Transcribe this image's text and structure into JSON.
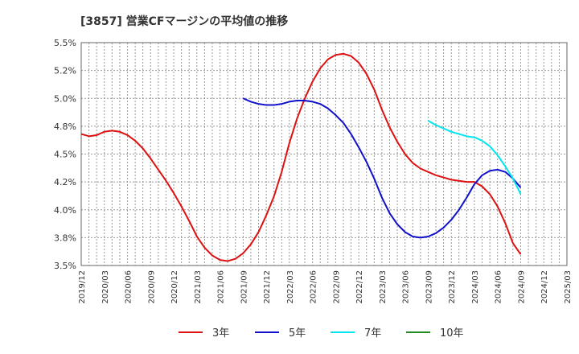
{
  "chart_data": {
    "type": "line",
    "title": "[3857]  営業CFマージンの平均値の推移",
    "ylim": [
      3.5,
      5.5
    ],
    "yticks": [
      "5.5%",
      "5.2%",
      "5.0%",
      "4.8%",
      "4.5%",
      "4.2%",
      "4.0%",
      "3.8%",
      "3.5%"
    ],
    "xticks": [
      "2019/12",
      "2020/03",
      "2020/06",
      "2020/09",
      "2020/12",
      "2021/03",
      "2021/06",
      "2021/09",
      "2021/12",
      "2022/03",
      "2022/06",
      "2022/09",
      "2022/12",
      "2023/03",
      "2023/06",
      "2023/09",
      "2023/12",
      "2024/03",
      "2024/06",
      "2024/09",
      "2024/12",
      "2025/03"
    ],
    "grid": true,
    "legend_position": "bottom",
    "series": [
      {
        "name": "3年",
        "color": "#dd1111",
        "points": [
          [
            0,
            4.68
          ],
          [
            1,
            4.66
          ],
          [
            2,
            4.67
          ],
          [
            3,
            4.7
          ],
          [
            4,
            4.71
          ],
          [
            5,
            4.7
          ],
          [
            6,
            4.67
          ],
          [
            7,
            4.62
          ],
          [
            8,
            4.55
          ],
          [
            9,
            4.46
          ],
          [
            10,
            4.36
          ],
          [
            11,
            4.26
          ],
          [
            12,
            4.15
          ],
          [
            13,
            4.03
          ],
          [
            14,
            3.9
          ],
          [
            15,
            3.76
          ],
          [
            16,
            3.66
          ],
          [
            17,
            3.59
          ],
          [
            18,
            3.55
          ],
          [
            19,
            3.54
          ],
          [
            20,
            3.56
          ],
          [
            21,
            3.61
          ],
          [
            22,
            3.69
          ],
          [
            23,
            3.8
          ],
          [
            24,
            3.95
          ],
          [
            25,
            4.12
          ],
          [
            26,
            4.34
          ],
          [
            27,
            4.6
          ],
          [
            28,
            4.82
          ],
          [
            29,
            5.0
          ],
          [
            30,
            5.15
          ],
          [
            31,
            5.27
          ],
          [
            32,
            5.35
          ],
          [
            33,
            5.39
          ],
          [
            34,
            5.4
          ],
          [
            35,
            5.38
          ],
          [
            36,
            5.32
          ],
          [
            37,
            5.22
          ],
          [
            38,
            5.08
          ],
          [
            39,
            4.9
          ],
          [
            40,
            4.74
          ],
          [
            41,
            4.61
          ],
          [
            42,
            4.5
          ],
          [
            43,
            4.42
          ],
          [
            44,
            4.37
          ],
          [
            45,
            4.34
          ],
          [
            46,
            4.31
          ],
          [
            47,
            4.29
          ],
          [
            48,
            4.27
          ],
          [
            49,
            4.26
          ],
          [
            50,
            4.25
          ],
          [
            51,
            4.25
          ],
          [
            52,
            4.21
          ],
          [
            53,
            4.14
          ],
          [
            54,
            4.03
          ],
          [
            55,
            3.88
          ],
          [
            56,
            3.7
          ],
          [
            57,
            3.6
          ]
        ]
      },
      {
        "name": "5年",
        "color": "#1111cc",
        "points": [
          [
            21,
            5.0
          ],
          [
            22,
            4.97
          ],
          [
            23,
            4.95
          ],
          [
            24,
            4.94
          ],
          [
            25,
            4.94
          ],
          [
            26,
            4.95
          ],
          [
            27,
            4.97
          ],
          [
            28,
            4.98
          ],
          [
            29,
            4.98
          ],
          [
            30,
            4.97
          ],
          [
            31,
            4.95
          ],
          [
            32,
            4.91
          ],
          [
            33,
            4.85
          ],
          [
            34,
            4.78
          ],
          [
            35,
            4.68
          ],
          [
            36,
            4.56
          ],
          [
            37,
            4.43
          ],
          [
            38,
            4.28
          ],
          [
            39,
            4.11
          ],
          [
            40,
            3.97
          ],
          [
            41,
            3.87
          ],
          [
            42,
            3.8
          ],
          [
            43,
            3.76
          ],
          [
            44,
            3.75
          ],
          [
            45,
            3.76
          ],
          [
            46,
            3.79
          ],
          [
            47,
            3.84
          ],
          [
            48,
            3.91
          ],
          [
            49,
            4.0
          ],
          [
            50,
            4.11
          ],
          [
            51,
            4.23
          ],
          [
            52,
            4.31
          ],
          [
            53,
            4.35
          ],
          [
            54,
            4.36
          ],
          [
            55,
            4.34
          ],
          [
            56,
            4.28
          ],
          [
            57,
            4.2
          ]
        ]
      },
      {
        "name": "7年",
        "color": "#00e5ee",
        "points": [
          [
            45,
            4.8
          ],
          [
            46,
            4.76
          ],
          [
            47,
            4.73
          ],
          [
            48,
            4.7
          ],
          [
            49,
            4.68
          ],
          [
            50,
            4.66
          ],
          [
            51,
            4.65
          ],
          [
            52,
            4.62
          ],
          [
            53,
            4.57
          ],
          [
            54,
            4.49
          ],
          [
            55,
            4.39
          ],
          [
            56,
            4.28
          ],
          [
            57,
            4.14
          ]
        ]
      },
      {
        "name": "10年",
        "color": "#228b22",
        "points": []
      }
    ]
  }
}
